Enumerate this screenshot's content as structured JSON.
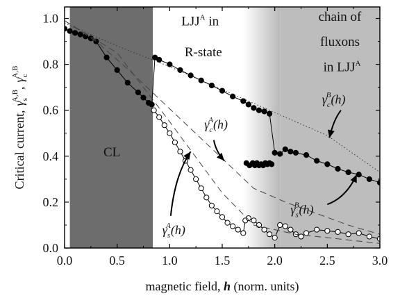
{
  "chart_data": {
    "type": "scatter",
    "xlabel_text": "magnetic field, ",
    "xlabel_var": "h",
    "xlabel_units": " (norm. units)",
    "ylabel": {
      "prefix": "Critical current,",
      "gamma": "γ",
      "s_sub": "s",
      "s_sup": "A,B",
      "c_sub": "c",
      "c_sup": "A,B",
      "comma": ","
    },
    "xlim": [
      0.0,
      3.0
    ],
    "ylim": [
      0.0,
      1.05
    ],
    "xticks": [
      0.0,
      0.5,
      1.0,
      1.5,
      2.0,
      2.5,
      3.0
    ],
    "xtick_labels": [
      "0.0",
      "0.5",
      "1.0",
      "1.5",
      "2.0",
      "2.5",
      "3.0"
    ],
    "yticks": [
      0.0,
      0.2,
      0.4,
      0.6,
      0.8,
      1.0
    ],
    "ytick_labels": [
      "0.0",
      "0.2",
      "0.4",
      "0.6",
      "0.8",
      "1.0"
    ],
    "regions": [
      {
        "name": "CL",
        "x0": 0.05,
        "x1": 0.84,
        "color": "#6d6d6d",
        "label": "CL"
      },
      {
        "name": "R-state",
        "x0": 1.7,
        "x1": 2.05,
        "gradient": [
          "#ffffff",
          "#b9b9b9"
        ]
      },
      {
        "name": "fluxons",
        "x0": 2.05,
        "x1": 3.0,
        "color": "#bdbdbd"
      }
    ],
    "region_labels": {
      "cl": "CL",
      "rstate_line1": "LJJ",
      "rstate_sup": "A",
      "rstate_line1_end": " in",
      "rstate_line2": "R-state",
      "chain_line1": "chain of",
      "chain_line2": "fluxons",
      "chain_line3": "in LJJ",
      "chain_sup": "A"
    },
    "annotations": [
      {
        "gamma": "γ",
        "sub": "c",
        "sup": "B",
        "arg": "(h)"
      },
      {
        "gamma": "γ",
        "sub": "c",
        "sup": "A",
        "arg": "(h)"
      },
      {
        "gamma": "γ",
        "sub": "s",
        "sup": "A",
        "arg": "(h)"
      },
      {
        "gamma": "γ",
        "sub": "s",
        "sup": "B",
        "arg": "(h)"
      }
    ],
    "series": [
      {
        "key": "gamma_c_measured",
        "marker": "filled-circle",
        "color": "#000000",
        "x": [
          0.0,
          0.05,
          0.1,
          0.15,
          0.2,
          0.25,
          0.3,
          0.4,
          0.5,
          0.6,
          0.7,
          0.75,
          0.8,
          0.83,
          0.86,
          0.9,
          1.0,
          1.1,
          1.2,
          1.3,
          1.4,
          1.5,
          1.6,
          1.7,
          1.75,
          1.8,
          1.85,
          1.9,
          1.95,
          2.0,
          2.05,
          2.1,
          2.15,
          2.2,
          2.3,
          2.4,
          2.5,
          2.6,
          2.7,
          2.8,
          2.9,
          3.0
        ],
        "y": [
          0.955,
          0.945,
          0.937,
          0.93,
          0.922,
          0.913,
          0.9,
          0.83,
          0.775,
          0.72,
          0.678,
          0.655,
          0.632,
          0.625,
          0.83,
          0.82,
          0.8,
          0.775,
          0.752,
          0.73,
          0.708,
          0.685,
          0.66,
          0.64,
          0.625,
          0.61,
          0.6,
          0.595,
          0.585,
          0.415,
          0.41,
          0.43,
          0.42,
          0.415,
          0.405,
          0.38,
          0.365,
          0.345,
          0.33,
          0.32,
          0.3,
          0.285
        ]
      },
      {
        "key": "gamma_c_jumps",
        "marker": "filled-circle",
        "color": "#000000",
        "x": [
          1.73,
          1.76,
          1.79,
          1.81,
          1.83,
          1.85,
          1.87,
          1.89,
          1.91,
          1.93,
          1.95,
          1.97
        ],
        "y": [
          0.37,
          0.36,
          0.37,
          0.36,
          0.37,
          0.36,
          0.365,
          0.36,
          0.37,
          0.365,
          0.37,
          0.365
        ]
      },
      {
        "key": "gamma_s_measured",
        "marker": "open-circle",
        "color": "#000000",
        "x": [
          0.85,
          0.9,
          0.95,
          1.0,
          1.05,
          1.1,
          1.15,
          1.2,
          1.25,
          1.3,
          1.35,
          1.4,
          1.45,
          1.5,
          1.55,
          1.6,
          1.65,
          1.7,
          1.72,
          1.75,
          1.8,
          1.85,
          1.9,
          1.95,
          2.0,
          2.05,
          2.1,
          2.15,
          2.2,
          2.25,
          2.3,
          2.4,
          2.5,
          2.6,
          2.7,
          2.8,
          2.9,
          3.0
        ],
        "y": [
          0.6,
          0.57,
          0.535,
          0.5,
          0.46,
          0.42,
          0.38,
          0.34,
          0.3,
          0.26,
          0.22,
          0.185,
          0.16,
          0.135,
          0.11,
          0.095,
          0.08,
          0.065,
          0.12,
          0.13,
          0.12,
          0.1,
          0.08,
          0.06,
          0.045,
          0.1,
          0.095,
          0.08,
          0.06,
          0.05,
          0.065,
          0.08,
          0.075,
          0.07,
          0.06,
          0.065,
          0.05,
          0.04
        ]
      },
      {
        "key": "gamma_c_B_theory",
        "style": "dotted",
        "color": "#333333",
        "x": [
          0.0,
          0.5,
          1.0,
          1.5,
          2.0,
          2.5,
          3.0
        ],
        "y": [
          0.98,
          0.88,
          0.79,
          0.69,
          0.59,
          0.49,
          0.33
        ]
      },
      {
        "key": "gamma_c_A_theory",
        "style": "dashed",
        "color": "#444444",
        "x": [
          0.0,
          0.3,
          0.6,
          0.9,
          1.2,
          1.5,
          1.8,
          2.1,
          2.4,
          2.7,
          3.0
        ],
        "y": [
          0.99,
          0.9,
          0.78,
          0.65,
          0.52,
          0.39,
          0.26,
          0.2,
          0.15,
          0.1,
          0.06
        ]
      },
      {
        "key": "gamma_s_A_theory",
        "style": "dashed",
        "color": "#444444",
        "x": [
          0.0,
          0.5,
          1.0,
          1.5,
          1.8,
          2.2,
          2.6,
          3.0
        ],
        "y": [
          0.99,
          0.85,
          0.55,
          0.24,
          0.1,
          0.06,
          0.04,
          0.02
        ]
      }
    ]
  }
}
